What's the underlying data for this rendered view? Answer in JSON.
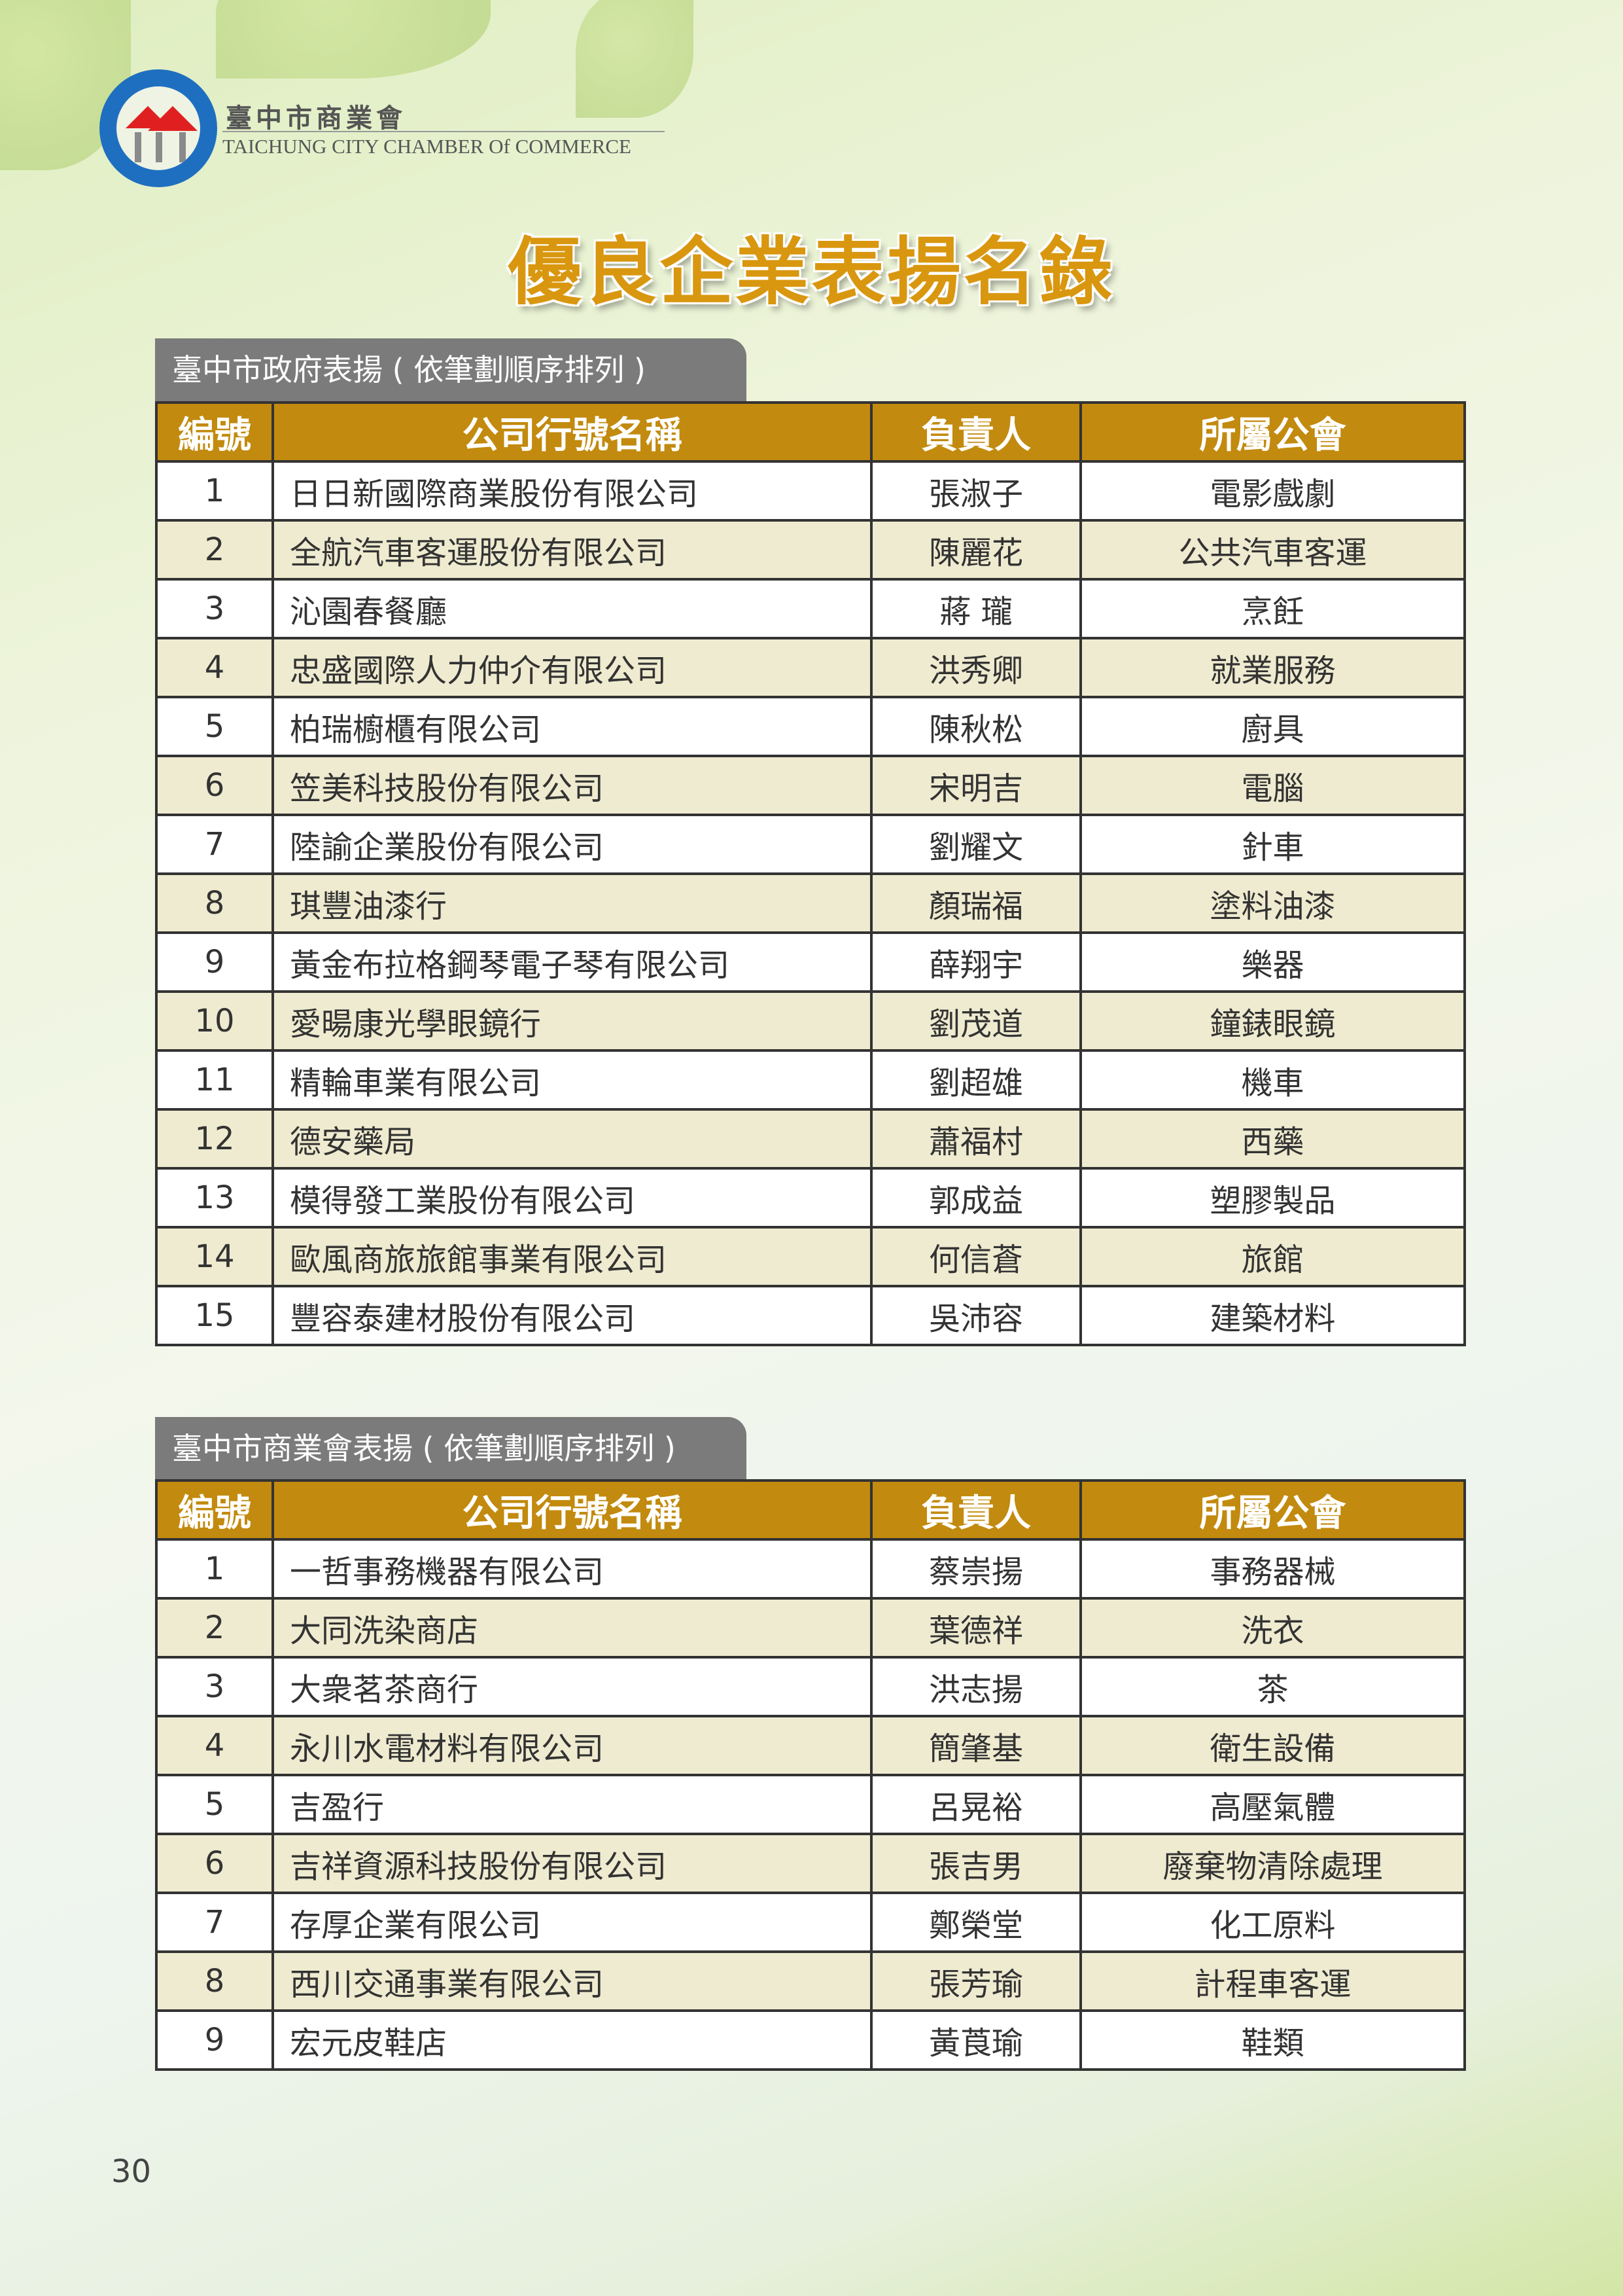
{
  "header": {
    "org_name_cn": "臺中市商業會",
    "org_name_en": "TAICHUNG CITY CHAMBER Of COMMERCE",
    "logo_text": "臺中市商業會 TAICHUNG CITY CHAMBER OF COMMERCE"
  },
  "title": "優良企業表揚名錄",
  "columns": [
    "編號",
    "公司行號名稱",
    "負責人",
    "所屬公會"
  ],
  "colors": {
    "header_bg": "#c28a0e",
    "alt_row_bg": "#efebd0",
    "tab_bg": "#7b7b7b",
    "title": "#d9970f"
  },
  "sections": [
    {
      "tab_label": "臺中市政府表揚 ( 依筆劃順序排列 )",
      "rows": [
        [
          "1",
          "日日新國際商業股份有限公司",
          "張淑子",
          "電影戲劇"
        ],
        [
          "2",
          "全航汽車客運股份有限公司",
          "陳麗花",
          "公共汽車客運"
        ],
        [
          "3",
          "沁園春餐廳",
          "蔣 瓏",
          "烹飪"
        ],
        [
          "4",
          "忠盛國際人力仲介有限公司",
          "洪秀卿",
          "就業服務"
        ],
        [
          "5",
          "柏瑞櫥櫃有限公司",
          "陳秋松",
          "廚具"
        ],
        [
          "6",
          "笠美科技股份有限公司",
          "宋明吉",
          "電腦"
        ],
        [
          "7",
          "陸諭企業股份有限公司",
          "劉耀文",
          "針車"
        ],
        [
          "8",
          "琪豐油漆行",
          "顏瑞福",
          "塗料油漆"
        ],
        [
          "9",
          "黃金布拉格鋼琴電子琴有限公司",
          "薛翔宇",
          "樂器"
        ],
        [
          "10",
          "愛暘康光學眼鏡行",
          "劉茂道",
          "鐘錶眼鏡"
        ],
        [
          "11",
          "精輪車業有限公司",
          "劉超雄",
          "機車"
        ],
        [
          "12",
          "德安藥局",
          "蕭福村",
          "西藥"
        ],
        [
          "13",
          "模得發工業股份有限公司",
          "郭成益",
          "塑膠製品"
        ],
        [
          "14",
          "歐風商旅旅館事業有限公司",
          "何信蒼",
          "旅館"
        ],
        [
          "15",
          "豐容泰建材股份有限公司",
          "吳沛容",
          "建築材料"
        ]
      ]
    },
    {
      "tab_label": "臺中市商業會表揚 ( 依筆劃順序排列 )",
      "rows": [
        [
          "1",
          "一哲事務機器有限公司",
          "蔡崇揚",
          "事務器械"
        ],
        [
          "2",
          "大同洗染商店",
          "葉德祥",
          "洗衣"
        ],
        [
          "3",
          "大衆茗茶商行",
          "洪志揚",
          "茶"
        ],
        [
          "4",
          "永川水電材料有限公司",
          "簡肇基",
          "衛生設備"
        ],
        [
          "5",
          "吉盈行",
          "呂晃裕",
          "高壓氣體"
        ],
        [
          "6",
          "吉祥資源科技股份有限公司",
          "張吉男",
          "廢棄物清除處理"
        ],
        [
          "7",
          "存厚企業有限公司",
          "鄭榮堂",
          "化工原料"
        ],
        [
          "8",
          "西川交通事業有限公司",
          "張芳瑜",
          "計程車客運"
        ],
        [
          "9",
          "宏元皮鞋店",
          "黃莨瑜",
          "鞋類"
        ]
      ]
    }
  ],
  "page_number": "30"
}
